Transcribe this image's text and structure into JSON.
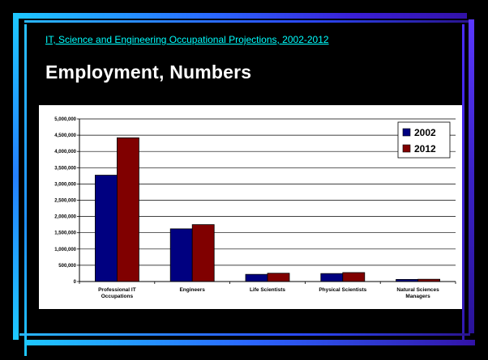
{
  "slide": {
    "subtitle_link": "IT, Science and Engineering Occupational Projections, 2002-2012",
    "title": "Employment, Numbers"
  },
  "colors": {
    "background": "#000000",
    "series_2002": "#000080",
    "series_2012": "#800000",
    "subtitle": "#00ffff",
    "title": "#ffffff"
  },
  "chart_data": {
    "type": "bar",
    "title": "",
    "xlabel": "",
    "ylabel": "",
    "categories": [
      [
        "Professional IT",
        "Occupations"
      ],
      [
        "Engineers"
      ],
      [
        "Life Scientists"
      ],
      [
        "Physical Scientists"
      ],
      [
        "Natural Sciences",
        "Managers"
      ]
    ],
    "series": [
      {
        "name": "2002",
        "color": "#000080",
        "values": [
          3270000,
          1620000,
          220000,
          245000,
          65000
        ]
      },
      {
        "name": "2012",
        "color": "#800000",
        "values": [
          4420000,
          1750000,
          255000,
          275000,
          70000
        ]
      }
    ],
    "ylim": [
      0,
      5000000
    ],
    "y_ticks": [
      "0",
      "500,000",
      "1,000,000",
      "1,500,000",
      "2,000,000",
      "2,500,000",
      "3,000,000",
      "3,500,000",
      "4,000,000",
      "4,500,000",
      "5,000,000"
    ],
    "grid": true,
    "legend_position": "top-right"
  }
}
